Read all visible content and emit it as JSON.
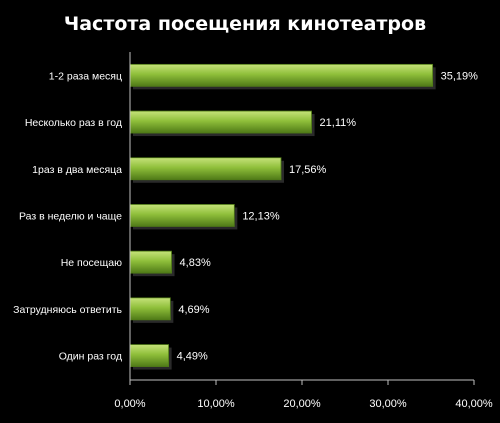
{
  "chart_data": {
    "type": "bar",
    "orientation": "horizontal",
    "title": "Частота посещения кинотеатров",
    "categories": [
      "1-2 раза месяц",
      "Несколько раз в год",
      "1раз в два месяца",
      "Раз в неделю и чаще",
      "Не посещаю",
      "Затрудняюсь ответить",
      "Один раз  год"
    ],
    "values": [
      35.19,
      21.11,
      17.56,
      12.13,
      4.83,
      4.69,
      4.49
    ],
    "value_labels": [
      "35,19%",
      "21,11%",
      "17,56%",
      "12,13%",
      "4,83%",
      "4,69%",
      "4,49%"
    ],
    "xlim": [
      0,
      40
    ],
    "x_ticks": [
      0,
      10,
      20,
      30,
      40
    ],
    "x_tick_labels": [
      "0,00%",
      "10,00%",
      "20,00%",
      "30,00%",
      "40,00%"
    ],
    "grid": false,
    "legend": "none",
    "colors": {
      "background": "#000000",
      "bar_light": "#c6e27a",
      "bar_mid": "#8fbf3a",
      "bar_dark": "#4f7a17",
      "text": "#ffffff",
      "axis": "#bfbfbf"
    }
  }
}
